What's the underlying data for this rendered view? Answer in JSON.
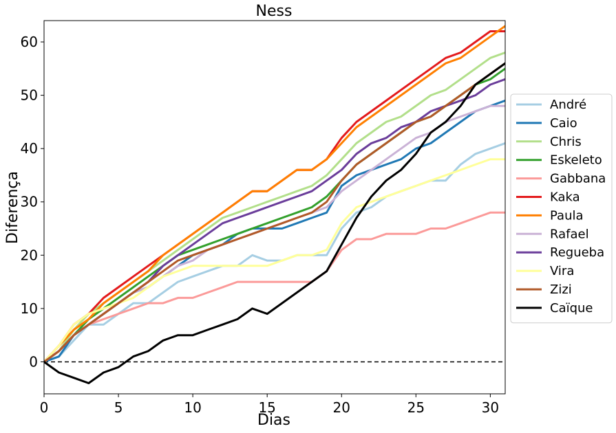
{
  "chart_data": {
    "type": "line",
    "title": "Ness",
    "xlabel": "Dias",
    "ylabel": "Diferença",
    "xlim": [
      0,
      31
    ],
    "ylim": [
      -6,
      64
    ],
    "xticks": [
      0,
      5,
      10,
      15,
      20,
      25,
      30
    ],
    "yticks": [
      0,
      10,
      20,
      30,
      40,
      50,
      60
    ],
    "reference_line": {
      "y": 0,
      "style": "dashed",
      "color": "#000000"
    },
    "grid": false,
    "legend_position": "right",
    "series": [
      {
        "name": "André",
        "color": "#a6cee3",
        "x": [
          0,
          1,
          2,
          3,
          4,
          5,
          6,
          7,
          8,
          9,
          10,
          11,
          12,
          13,
          14,
          15,
          16,
          17,
          18,
          19,
          20,
          21,
          22,
          23,
          24,
          25,
          26,
          27,
          28,
          29,
          30,
          31
        ],
        "y": [
          0,
          1,
          4,
          7,
          7,
          9,
          11,
          11,
          13,
          15,
          16,
          17,
          18,
          18,
          20,
          19,
          19,
          20,
          20,
          20,
          25,
          28,
          29,
          31,
          32,
          33,
          34,
          34,
          37,
          39,
          40,
          41
        ]
      },
      {
        "name": "Caio",
        "color": "#1f78b4",
        "x": [
          0,
          1,
          2,
          3,
          4,
          5,
          6,
          7,
          8,
          9,
          10,
          11,
          12,
          13,
          14,
          15,
          16,
          17,
          18,
          19,
          20,
          21,
          22,
          23,
          24,
          25,
          26,
          27,
          28,
          29,
          30,
          31
        ],
        "y": [
          0,
          1,
          5,
          7,
          9,
          11,
          13,
          14,
          16,
          18,
          20,
          21,
          22,
          24,
          25,
          25,
          25,
          26,
          27,
          28,
          33,
          35,
          36,
          37,
          38,
          40,
          41,
          43,
          45,
          47,
          48,
          49
        ]
      },
      {
        "name": "Chris",
        "color": "#b2df8a",
        "x": [
          0,
          1,
          2,
          3,
          4,
          5,
          6,
          7,
          8,
          9,
          10,
          11,
          12,
          13,
          14,
          15,
          16,
          17,
          18,
          19,
          20,
          21,
          22,
          23,
          24,
          25,
          26,
          27,
          28,
          29,
          30,
          31
        ],
        "y": [
          0,
          2,
          6,
          9,
          11,
          13,
          15,
          17,
          19,
          21,
          23,
          25,
          27,
          28,
          29,
          30,
          31,
          32,
          33,
          35,
          38,
          41,
          43,
          45,
          46,
          48,
          50,
          51,
          53,
          55,
          57,
          58
        ]
      },
      {
        "name": "Eskeleto",
        "color": "#33a02c",
        "x": [
          0,
          1,
          2,
          3,
          4,
          5,
          6,
          7,
          8,
          9,
          10,
          11,
          12,
          13,
          14,
          15,
          16,
          17,
          18,
          19,
          20,
          21,
          22,
          23,
          24,
          25,
          26,
          27,
          28,
          29,
          30,
          31
        ],
        "y": [
          0,
          2,
          5,
          8,
          10,
          12,
          14,
          16,
          18,
          20,
          21,
          22,
          23,
          24,
          25,
          26,
          27,
          28,
          29,
          31,
          34,
          37,
          39,
          41,
          43,
          45,
          46,
          48,
          50,
          52,
          53,
          55
        ]
      },
      {
        "name": "Gabbana",
        "color": "#fb9a99",
        "x": [
          0,
          1,
          2,
          3,
          4,
          5,
          6,
          7,
          8,
          9,
          10,
          11,
          12,
          13,
          14,
          15,
          16,
          17,
          18,
          19,
          20,
          21,
          22,
          23,
          24,
          25,
          26,
          27,
          28,
          29,
          30,
          31
        ],
        "y": [
          0,
          2,
          5,
          7,
          8,
          9,
          10,
          11,
          11,
          12,
          12,
          13,
          14,
          15,
          15,
          15,
          15,
          15,
          15,
          17,
          21,
          23,
          23,
          24,
          24,
          24,
          25,
          25,
          26,
          27,
          28,
          28
        ]
      },
      {
        "name": "Kaka",
        "color": "#e31a1c",
        "x": [
          0,
          1,
          2,
          3,
          4,
          5,
          6,
          7,
          8,
          9,
          10,
          11,
          12,
          13,
          14,
          15,
          16,
          17,
          18,
          19,
          20,
          21,
          22,
          23,
          24,
          25,
          26,
          27,
          28,
          29,
          30,
          31
        ],
        "y": [
          0,
          3,
          7,
          9,
          12,
          14,
          16,
          18,
          20,
          22,
          24,
          26,
          28,
          30,
          32,
          32,
          34,
          36,
          36,
          38,
          42,
          45,
          47,
          49,
          51,
          53,
          55,
          57,
          58,
          60,
          62,
          62
        ]
      },
      {
        "name": "Paula",
        "color": "#ff7f00",
        "x": [
          0,
          1,
          2,
          3,
          4,
          5,
          6,
          7,
          8,
          9,
          10,
          11,
          12,
          13,
          14,
          15,
          16,
          17,
          18,
          19,
          20,
          21,
          22,
          23,
          24,
          25,
          26,
          27,
          28,
          29,
          30,
          31
        ],
        "y": [
          0,
          3,
          6,
          8,
          11,
          13,
          15,
          17,
          20,
          22,
          24,
          26,
          28,
          30,
          32,
          32,
          34,
          36,
          36,
          38,
          41,
          44,
          46,
          48,
          50,
          52,
          54,
          56,
          57,
          59,
          61,
          63
        ]
      },
      {
        "name": "Rafael",
        "color": "#cab2d6",
        "x": [
          0,
          1,
          2,
          3,
          4,
          5,
          6,
          7,
          8,
          9,
          10,
          11,
          12,
          13,
          14,
          15,
          16,
          17,
          18,
          19,
          20,
          21,
          22,
          23,
          24,
          25,
          26,
          27,
          28,
          29,
          30,
          31
        ],
        "y": [
          0,
          2,
          5,
          7,
          9,
          11,
          13,
          14,
          16,
          18,
          19,
          21,
          22,
          23,
          24,
          25,
          26,
          27,
          28,
          29,
          32,
          34,
          36,
          38,
          40,
          42,
          43,
          45,
          46,
          47,
          48,
          48
        ]
      },
      {
        "name": "Regueba",
        "color": "#6a3d9a",
        "x": [
          0,
          1,
          2,
          3,
          4,
          5,
          6,
          7,
          8,
          9,
          10,
          11,
          12,
          13,
          14,
          15,
          16,
          17,
          18,
          19,
          20,
          21,
          22,
          23,
          24,
          25,
          26,
          27,
          28,
          29,
          30,
          31
        ],
        "y": [
          0,
          2,
          5,
          7,
          9,
          11,
          13,
          15,
          18,
          20,
          22,
          24,
          26,
          27,
          28,
          29,
          30,
          31,
          32,
          34,
          36,
          39,
          41,
          42,
          44,
          45,
          47,
          48,
          49,
          50,
          52,
          53
        ]
      },
      {
        "name": "Vira",
        "color": "#ffff99",
        "x": [
          0,
          1,
          2,
          3,
          4,
          5,
          6,
          7,
          8,
          9,
          10,
          11,
          12,
          13,
          14,
          15,
          16,
          17,
          18,
          19,
          20,
          21,
          22,
          23,
          24,
          25,
          26,
          27,
          28,
          29,
          30,
          31
        ],
        "y": [
          0,
          3,
          7,
          9,
          10,
          11,
          12,
          14,
          16,
          17,
          18,
          18,
          18,
          18,
          18,
          18,
          19,
          20,
          20,
          21,
          26,
          29,
          30,
          31,
          32,
          33,
          34,
          35,
          36,
          37,
          38,
          38
        ]
      },
      {
        "name": "Zizi",
        "color": "#b15928",
        "x": [
          0,
          1,
          2,
          3,
          4,
          5,
          6,
          7,
          8,
          9,
          10,
          11,
          12,
          13,
          14,
          15,
          16,
          17,
          18,
          19,
          20,
          21,
          22,
          23,
          24,
          25,
          26,
          27,
          28,
          29,
          30,
          31
        ],
        "y": [
          0,
          2,
          5,
          7,
          9,
          11,
          13,
          15,
          17,
          19,
          20,
          21,
          22,
          23,
          24,
          25,
          26,
          27,
          28,
          30,
          34,
          37,
          39,
          41,
          43,
          45,
          46,
          48,
          50,
          52,
          54,
          56
        ]
      },
      {
        "name": "Caïque",
        "color": "#000000",
        "x": [
          0,
          1,
          2,
          3,
          4,
          5,
          6,
          7,
          8,
          9,
          10,
          11,
          12,
          13,
          14,
          15,
          16,
          17,
          18,
          19,
          20,
          21,
          22,
          23,
          24,
          25,
          26,
          27,
          28,
          29,
          30,
          31
        ],
        "y": [
          0,
          -2,
          -3,
          -4,
          -2,
          -1,
          1,
          2,
          4,
          5,
          5,
          6,
          7,
          8,
          10,
          9,
          11,
          13,
          15,
          17,
          22,
          27,
          31,
          34,
          36,
          39,
          43,
          45,
          48,
          52,
          54,
          56
        ]
      }
    ]
  }
}
